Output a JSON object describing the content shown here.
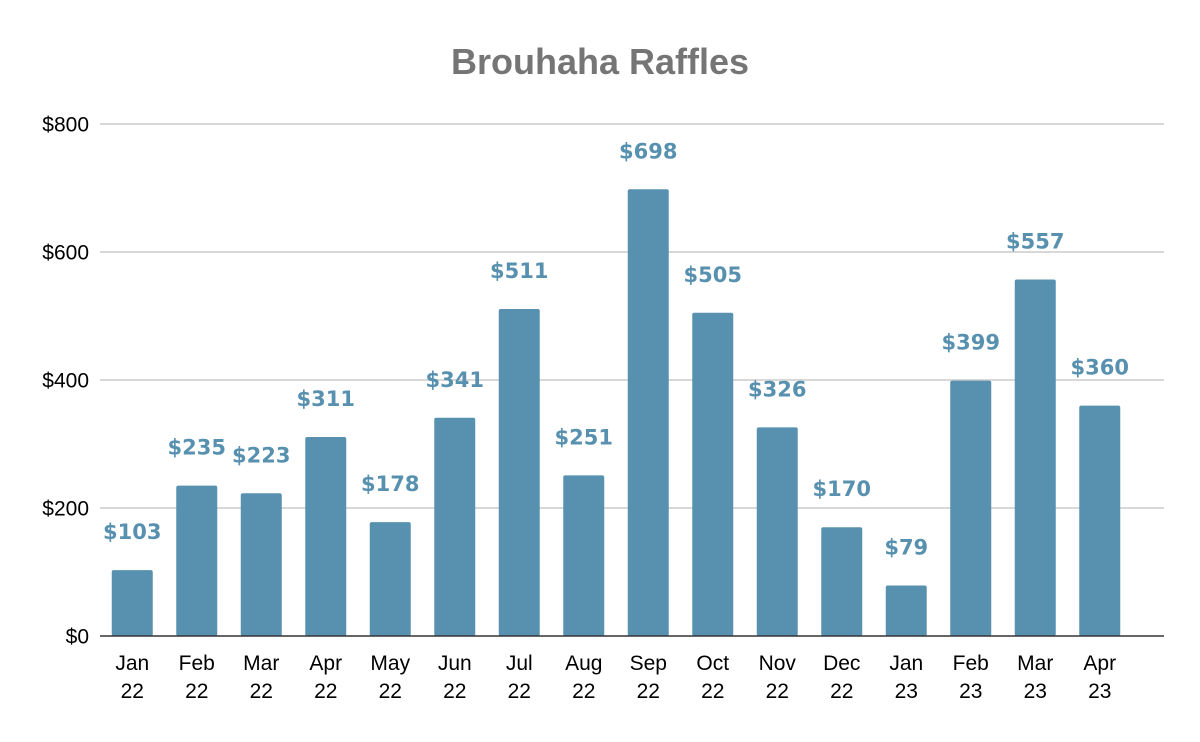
{
  "chart_data": {
    "type": "bar",
    "title": "Brouhaha Raffles",
    "xlabel": "",
    "ylabel": "",
    "categories": [
      [
        "Jan",
        "22"
      ],
      [
        "Feb",
        "22"
      ],
      [
        "Mar",
        "22"
      ],
      [
        "Apr",
        "22"
      ],
      [
        "May",
        "22"
      ],
      [
        "Jun",
        "22"
      ],
      [
        "Jul",
        "22"
      ],
      [
        "Aug",
        "22"
      ],
      [
        "Sep",
        "22"
      ],
      [
        "Oct",
        "22"
      ],
      [
        "Nov",
        "22"
      ],
      [
        "Dec",
        "22"
      ],
      [
        "Jan",
        "23"
      ],
      [
        "Feb",
        "23"
      ],
      [
        "Mar",
        "23"
      ],
      [
        "Apr",
        "23"
      ]
    ],
    "values": [
      103,
      235,
      223,
      311,
      178,
      341,
      511,
      251,
      698,
      505,
      326,
      170,
      79,
      399,
      557,
      360
    ],
    "data_labels": [
      "$103",
      "$235",
      "$223",
      "$311",
      "$178",
      "$341",
      "$511",
      "$251",
      "$698",
      "$505",
      "$326",
      "$170",
      "$79",
      "$399",
      "$557",
      "$360"
    ],
    "ylim": [
      0,
      800
    ],
    "y_ticks": [
      {
        "value": 0,
        "label": "$0"
      },
      {
        "value": 200,
        "label": "$200"
      },
      {
        "value": 400,
        "label": "$400"
      },
      {
        "value": 600,
        "label": "$600"
      },
      {
        "value": 800,
        "label": "$800"
      }
    ],
    "grid": true,
    "legend": "none",
    "colors": {
      "bar": "#5891AF",
      "data_label": "#5891AF",
      "title": "#757575",
      "grid": "#CCCCCC",
      "axis": "#333333"
    }
  }
}
